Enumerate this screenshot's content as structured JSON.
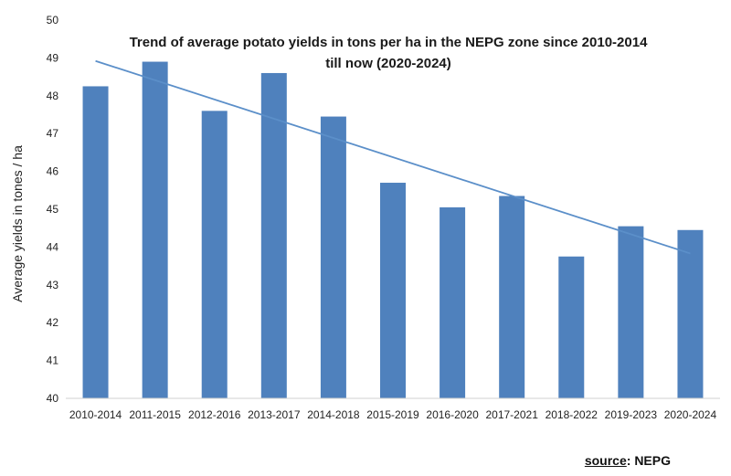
{
  "chart_data": {
    "type": "bar",
    "title_lines": [
      "Trend of average  potato yields in tons per ha in the NEPG zone since 2010-2014",
      "till now (2020-2024)"
    ],
    "ylabel": "Average yields in tones / ha",
    "xlabel": "",
    "ylim": [
      40,
      50
    ],
    "y_ticks": [
      "40",
      "41",
      "42",
      "43",
      "44",
      "45",
      "46",
      "47",
      "48",
      "49",
      "50"
    ],
    "categories": [
      "2010-2014",
      "2011-2015",
      "2012-2016",
      "2013-2017",
      "2014-2018",
      "2015-2019",
      "2016-2020",
      "2017-2021",
      "2018-2022",
      "2019-2023",
      "2020-2024"
    ],
    "values": [
      48.25,
      48.9,
      47.6,
      48.6,
      47.45,
      45.7,
      45.05,
      45.35,
      43.75,
      44.55,
      44.45
    ],
    "trendline": {
      "type": "linear",
      "start": 48.92,
      "end": 43.83
    },
    "grid": false,
    "legend": "none",
    "bar_color": "#4f81bd",
    "trend_color": "#5b8fc9"
  },
  "source": {
    "label": "source",
    "value": ": NEPG"
  }
}
